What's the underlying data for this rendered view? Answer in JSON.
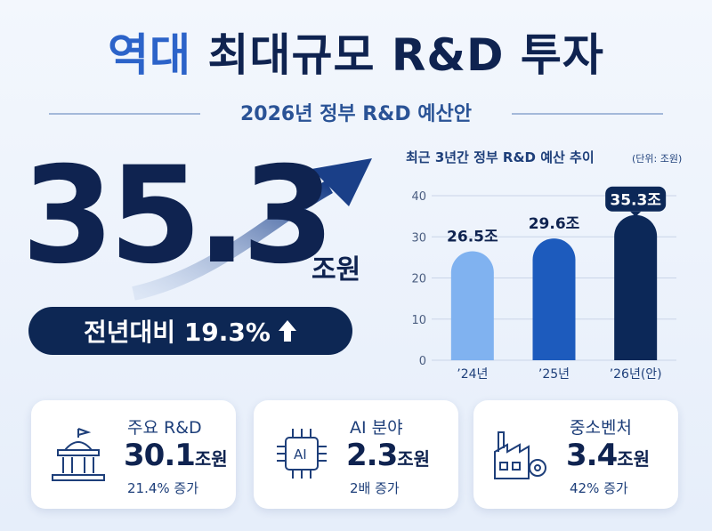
{
  "header": {
    "title_highlight": "역대",
    "title_rest": "최대규모 R&D 투자",
    "subtitle": "2026년 정부 R&D 예산안"
  },
  "hero": {
    "value": "35.3",
    "unit": "조원",
    "change": "전년대비 19.3%"
  },
  "chart_data": {
    "type": "bar",
    "title": "최근 3년간 정부 R&D 예산 추이",
    "unit_note": "(단위: 조원)",
    "categories": [
      "’24년",
      "’25년",
      "’26년(안)"
    ],
    "values": [
      26.5,
      29.6,
      35.3
    ],
    "value_labels": [
      "26.5조",
      "29.6조",
      "35.3조"
    ],
    "colors": [
      "#80b2f0",
      "#1d5bbd",
      "#0c2858"
    ],
    "ylim": [
      0,
      40
    ],
    "yticks": [
      0,
      10,
      20,
      30,
      40
    ],
    "grid": true
  },
  "cards": [
    {
      "label": "주요 R&D",
      "value": "30.1",
      "unit": "조원",
      "note": "21.4% 증가"
    },
    {
      "label": "AI 분야",
      "value": "2.3",
      "unit": "조원",
      "note": "2배 증가"
    },
    {
      "label": "중소벤처",
      "value": "3.4",
      "unit": "조원",
      "note": "42% 증가"
    }
  ]
}
